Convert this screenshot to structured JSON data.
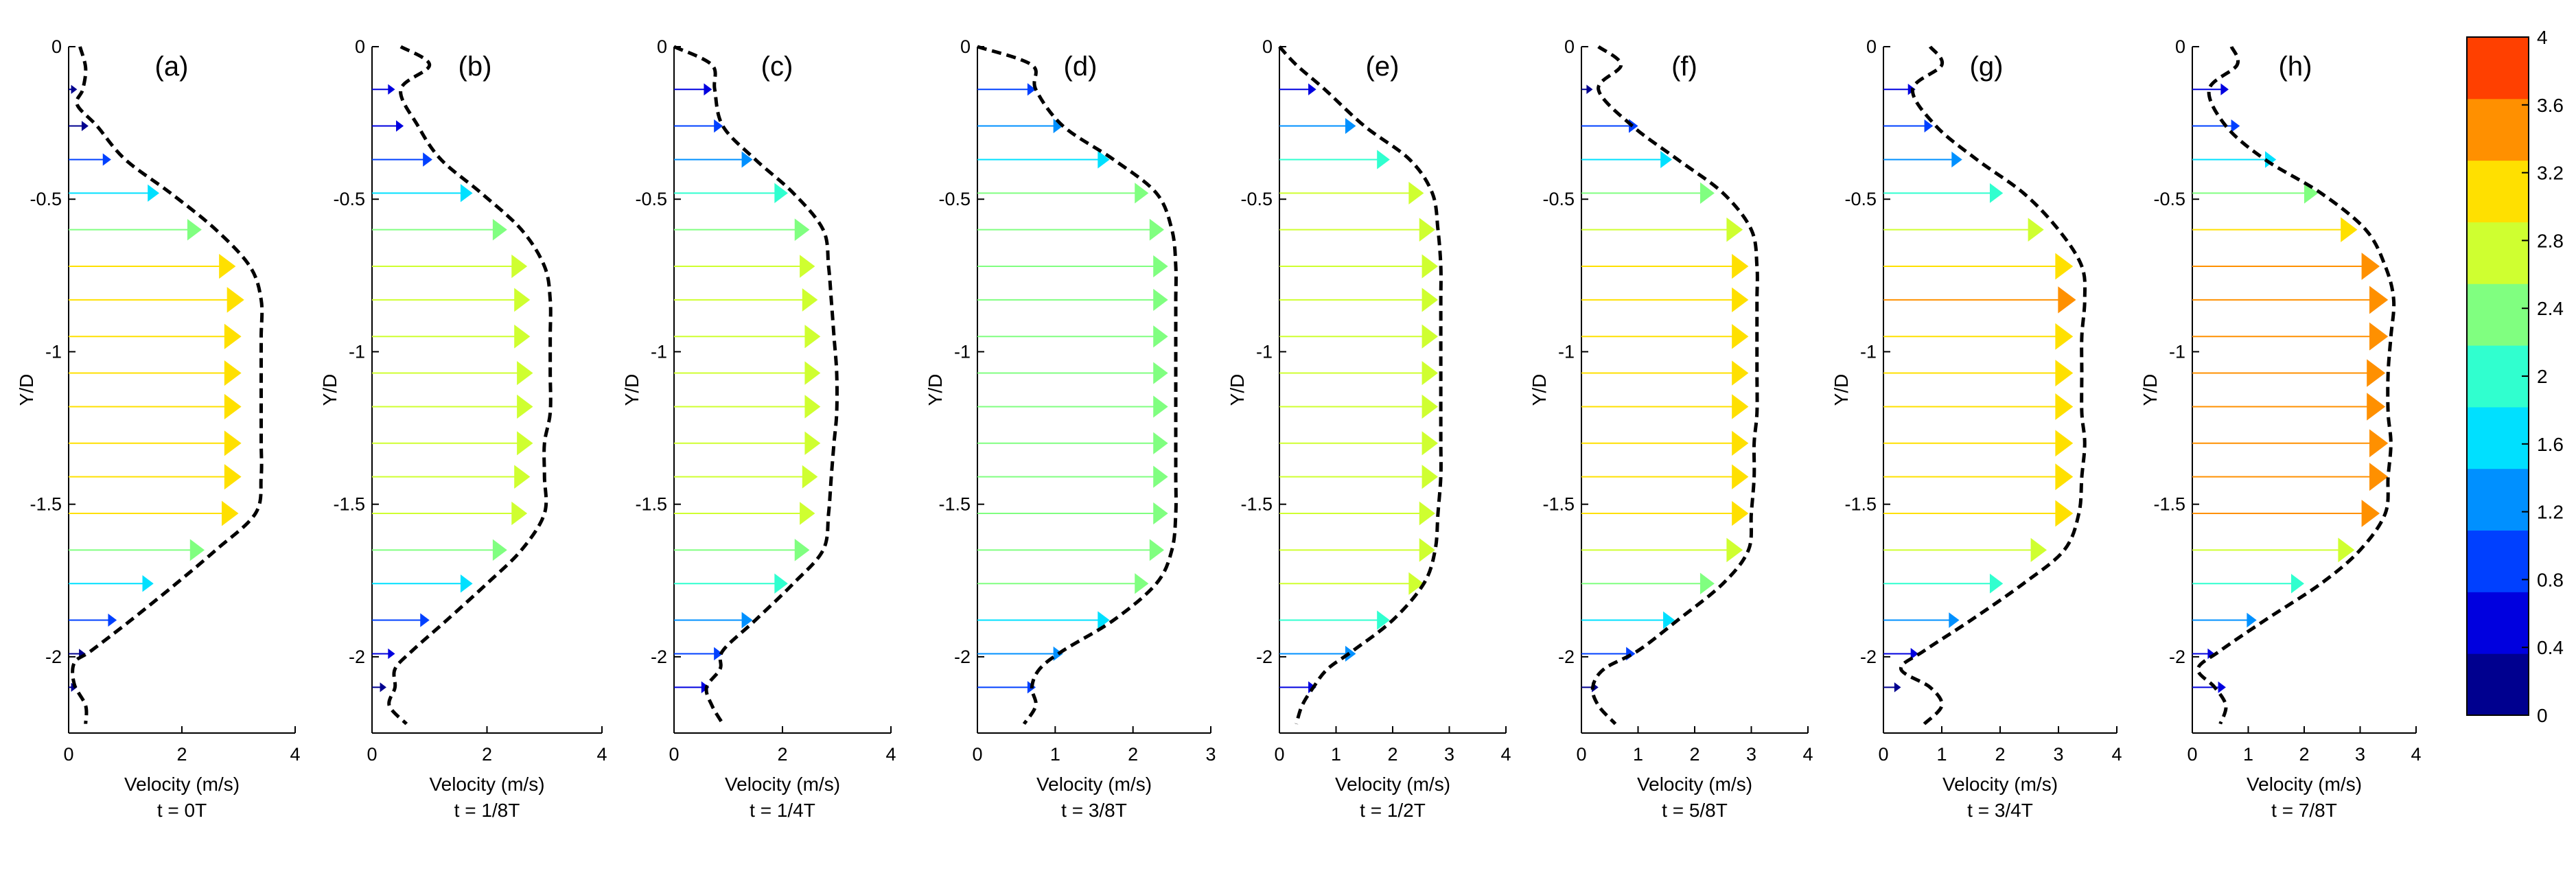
{
  "figure": {
    "ylabel": "Y/D",
    "xlabel": "Velocity (m/s)",
    "y_ticks": [
      0,
      -0.5,
      -1,
      -1.5,
      -2
    ],
    "y_tick_labels": [
      "0",
      "-0.5",
      "-1",
      "-1.5",
      "-2"
    ],
    "ylim": [
      -2.25,
      0
    ]
  },
  "colorbar": {
    "range": [
      0,
      4
    ],
    "ticks": [
      "0",
      "0.4",
      "0.8",
      "1.2",
      "1.6",
      "2",
      "2.4",
      "2.8",
      "3.2",
      "3.6",
      "4"
    ],
    "colors": [
      "#00008F",
      "#0000DF",
      "#0040FF",
      "#0090FF",
      "#00E0FF",
      "#30FFCF",
      "#80FF80",
      "#CFFF30",
      "#FFE000",
      "#FF9000",
      "#FF4000"
    ]
  },
  "chart_data": [
    {
      "panel": "(a)",
      "type": "line",
      "time_label": "t = 0T",
      "xlim": [
        0,
        4
      ],
      "x_ticks": [
        "0",
        "2",
        "4"
      ],
      "profile_y": [
        0,
        -0.07,
        -0.14,
        -0.19,
        -0.26,
        -0.37,
        -0.48,
        -0.6,
        -0.72,
        -0.83,
        -0.95,
        -1.07,
        -1.2,
        -1.3,
        -1.41,
        -1.53,
        -1.65,
        -1.76,
        -1.88,
        -1.98,
        -2.02,
        -2.09,
        -2.16,
        -2.22
      ],
      "profile_x": [
        0.2,
        0.3,
        0.25,
        0.15,
        0.5,
        1.0,
        1.8,
        2.6,
        3.2,
        3.4,
        3.4,
        3.4,
        3.4,
        3.4,
        3.4,
        3.3,
        2.6,
        1.9,
        1.1,
        0.4,
        0.1,
        0.1,
        0.3,
        0.3
      ],
      "arrow_y": [
        -0.14,
        -0.26,
        -0.37,
        -0.48,
        -0.6,
        -0.72,
        -0.83,
        -0.95,
        -1.07,
        -1.18,
        -1.3,
        -1.41,
        -1.53,
        -1.65,
        -1.76,
        -1.88,
        -1.99,
        -2.1
      ],
      "arrow_v": [
        0.15,
        0.35,
        0.75,
        1.6,
        2.35,
        2.95,
        3.1,
        3.05,
        3.05,
        3.05,
        3.05,
        3.05,
        3.0,
        2.4,
        1.5,
        0.85,
        0.3,
        0.15
      ]
    },
    {
      "panel": "(b)",
      "type": "line",
      "time_label": "t = 1/8T",
      "xlim": [
        0,
        4
      ],
      "x_ticks": [
        "0",
        "2",
        "4"
      ],
      "profile_y": [
        0,
        -0.06,
        -0.14,
        -0.26,
        -0.37,
        -0.48,
        -0.6,
        -0.72,
        -0.83,
        -0.95,
        -1.07,
        -1.2,
        -1.3,
        -1.41,
        -1.53,
        -1.65,
        -1.76,
        -1.88,
        -1.98,
        -2.04,
        -2.1,
        -2.16,
        -2.22
      ],
      "profile_x": [
        0.5,
        1.0,
        0.5,
        0.8,
        1.2,
        1.9,
        2.6,
        3.0,
        3.1,
        3.1,
        3.1,
        3.1,
        3.0,
        3.0,
        3.0,
        2.6,
        2.0,
        1.3,
        0.7,
        0.4,
        0.4,
        0.3,
        0.6
      ],
      "arrow_y": [
        -0.14,
        -0.26,
        -0.37,
        -0.48,
        -0.6,
        -0.72,
        -0.83,
        -0.95,
        -1.07,
        -1.18,
        -1.3,
        -1.41,
        -1.53,
        -1.65,
        -1.76,
        -1.88,
        -1.99,
        -2.1
      ],
      "arrow_v": [
        0.4,
        0.55,
        1.05,
        1.75,
        2.35,
        2.7,
        2.75,
        2.75,
        2.8,
        2.8,
        2.8,
        2.75,
        2.7,
        2.35,
        1.75,
        1.0,
        0.4,
        0.25
      ]
    },
    {
      "panel": "(c)",
      "type": "line",
      "time_label": "t = 1/4T",
      "xlim": [
        0,
        4
      ],
      "x_ticks": [
        "0",
        "2",
        "4"
      ],
      "profile_y": [
        0,
        -0.06,
        -0.14,
        -0.26,
        -0.37,
        -0.48,
        -0.6,
        -0.72,
        -0.83,
        -0.95,
        -1.07,
        -1.2,
        -1.3,
        -1.41,
        -1.53,
        -1.65,
        -1.76,
        -1.88,
        -1.98,
        -2.04,
        -2.1,
        -2.16,
        -2.22
      ],
      "profile_x": [
        0,
        0.7,
        0.75,
        0.9,
        1.5,
        2.2,
        2.75,
        2.85,
        2.9,
        2.95,
        3.0,
        3.0,
        2.95,
        2.9,
        2.85,
        2.75,
        2.2,
        1.5,
        0.9,
        0.85,
        0.6,
        0.7,
        0.9
      ],
      "arrow_y": [
        -0.14,
        -0.26,
        -0.37,
        -0.48,
        -0.6,
        -0.72,
        -0.83,
        -0.95,
        -1.07,
        -1.18,
        -1.3,
        -1.41,
        -1.53,
        -1.65,
        -1.76,
        -1.88,
        -1.99,
        -2.1
      ],
      "arrow_v": [
        0.7,
        0.9,
        1.45,
        2.1,
        2.5,
        2.6,
        2.65,
        2.7,
        2.7,
        2.7,
        2.7,
        2.65,
        2.6,
        2.5,
        2.1,
        1.45,
        0.9,
        0.65
      ]
    },
    {
      "panel": "(d)",
      "type": "line",
      "time_label": "t = 3/8T",
      "xlim": [
        0,
        3
      ],
      "x_ticks": [
        "0",
        "1",
        "2",
        "3"
      ],
      "profile_y": [
        0,
        -0.06,
        -0.14,
        -0.26,
        -0.37,
        -0.48,
        -0.6,
        -0.72,
        -0.83,
        -0.95,
        -1.07,
        -1.2,
        -1.3,
        -1.41,
        -1.53,
        -1.65,
        -1.76,
        -1.88,
        -1.98,
        -2.04,
        -2.1,
        -2.16,
        -2.22
      ],
      "profile_x": [
        0,
        0.7,
        0.75,
        1.1,
        1.75,
        2.3,
        2.5,
        2.55,
        2.55,
        2.55,
        2.55,
        2.55,
        2.55,
        2.55,
        2.55,
        2.5,
        2.3,
        1.75,
        1.1,
        0.8,
        0.7,
        0.75,
        0.6
      ],
      "arrow_y": [
        -0.14,
        -0.26,
        -0.37,
        -0.48,
        -0.6,
        -0.72,
        -0.83,
        -0.95,
        -1.07,
        -1.18,
        -1.3,
        -1.41,
        -1.53,
        -1.65,
        -1.76,
        -1.88,
        -1.99,
        -2.1
      ],
      "arrow_v": [
        0.75,
        1.1,
        1.7,
        2.2,
        2.4,
        2.45,
        2.45,
        2.45,
        2.45,
        2.45,
        2.45,
        2.45,
        2.45,
        2.4,
        2.2,
        1.7,
        1.1,
        0.75
      ]
    },
    {
      "panel": "(e)",
      "type": "line",
      "time_label": "t = 1/2T",
      "xlim": [
        0,
        4
      ],
      "x_ticks": [
        "0",
        "1",
        "2",
        "3",
        "4"
      ],
      "profile_y": [
        0,
        -0.06,
        -0.14,
        -0.26,
        -0.37,
        -0.48,
        -0.6,
        -0.72,
        -0.83,
        -0.95,
        -1.07,
        -1.2,
        -1.3,
        -1.41,
        -1.53,
        -1.65,
        -1.76,
        -1.88,
        -1.98,
        -2.04,
        -2.1,
        -2.16,
        -2.22
      ],
      "profile_x": [
        0,
        0.3,
        0.8,
        1.5,
        2.3,
        2.7,
        2.8,
        2.85,
        2.85,
        2.85,
        2.85,
        2.85,
        2.85,
        2.85,
        2.8,
        2.75,
        2.55,
        2.0,
        1.3,
        0.85,
        0.6,
        0.4,
        0.3
      ],
      "arrow_y": [
        -0.14,
        -0.26,
        -0.37,
        -0.48,
        -0.6,
        -0.72,
        -0.83,
        -0.95,
        -1.07,
        -1.18,
        -1.3,
        -1.41,
        -1.53,
        -1.65,
        -1.76,
        -1.88,
        -1.99,
        -2.1
      ],
      "arrow_v": [
        0.65,
        1.35,
        1.95,
        2.55,
        2.75,
        2.8,
        2.8,
        2.8,
        2.8,
        2.8,
        2.8,
        2.8,
        2.75,
        2.75,
        2.55,
        1.95,
        1.35,
        0.65
      ]
    },
    {
      "panel": "(f)",
      "type": "line",
      "time_label": "t = 5/8T",
      "xlim": [
        0,
        4
      ],
      "x_ticks": [
        "0",
        "1",
        "2",
        "3",
        "4"
      ],
      "profile_y": [
        0,
        -0.06,
        -0.14,
        -0.26,
        -0.37,
        -0.48,
        -0.6,
        -0.72,
        -0.83,
        -0.95,
        -1.07,
        -1.2,
        -1.3,
        -1.41,
        -1.53,
        -1.65,
        -1.76,
        -1.88,
        -1.98,
        -2.04,
        -2.1,
        -2.16,
        -2.22
      ],
      "profile_x": [
        0.3,
        0.7,
        0.3,
        0.9,
        1.7,
        2.5,
        3.0,
        3.1,
        3.1,
        3.1,
        3.1,
        3.1,
        3.05,
        3.05,
        3.0,
        2.95,
        2.5,
        1.7,
        1.0,
        0.4,
        0.2,
        0.3,
        0.6
      ],
      "arrow_y": [
        -0.14,
        -0.26,
        -0.37,
        -0.48,
        -0.6,
        -0.72,
        -0.83,
        -0.95,
        -1.07,
        -1.18,
        -1.3,
        -1.41,
        -1.53,
        -1.65,
        -1.76,
        -1.88,
        -1.99,
        -2.1
      ],
      "arrow_v": [
        0.2,
        1.0,
        1.6,
        2.35,
        2.85,
        2.95,
        2.95,
        2.95,
        2.95,
        2.95,
        2.95,
        2.95,
        2.95,
        2.85,
        2.35,
        1.65,
        0.95,
        0.3
      ]
    },
    {
      "panel": "(g)",
      "type": "line",
      "time_label": "t = 3/4T",
      "xlim": [
        0,
        4
      ],
      "x_ticks": [
        "0",
        "1",
        "2",
        "3",
        "4"
      ],
      "profile_y": [
        0,
        -0.06,
        -0.14,
        -0.26,
        -0.37,
        -0.48,
        -0.6,
        -0.72,
        -0.83,
        -0.95,
        -1.07,
        -1.2,
        -1.3,
        -1.41,
        -1.53,
        -1.65,
        -1.76,
        -1.88,
        -1.98,
        -2.04,
        -2.1,
        -2.16,
        -2.22
      ],
      "profile_x": [
        0.8,
        1.0,
        0.5,
        0.9,
        1.6,
        2.4,
        3.0,
        3.4,
        3.45,
        3.4,
        3.4,
        3.4,
        3.45,
        3.4,
        3.35,
        3.1,
        2.4,
        1.5,
        0.7,
        0.3,
        0.8,
        1.0,
        0.7
      ],
      "arrow_y": [
        -0.14,
        -0.26,
        -0.37,
        -0.48,
        -0.6,
        -0.72,
        -0.83,
        -0.95,
        -1.07,
        -1.18,
        -1.3,
        -1.41,
        -1.53,
        -1.65,
        -1.76,
        -1.88,
        -1.99,
        -2.1
      ],
      "arrow_v": [
        0.55,
        0.85,
        1.35,
        2.05,
        2.75,
        3.25,
        3.3,
        3.25,
        3.25,
        3.25,
        3.25,
        3.25,
        3.25,
        2.8,
        2.05,
        1.3,
        0.6,
        0.3
      ]
    },
    {
      "panel": "(h)",
      "type": "line",
      "time_label": "t = 7/8T",
      "xlim": [
        0,
        4
      ],
      "x_ticks": [
        "0",
        "1",
        "2",
        "3",
        "4"
      ],
      "profile_y": [
        0,
        -0.06,
        -0.14,
        -0.26,
        -0.37,
        -0.48,
        -0.6,
        -0.72,
        -0.83,
        -0.95,
        -1.07,
        -1.2,
        -1.3,
        -1.41,
        -1.53,
        -1.65,
        -1.76,
        -1.88,
        -1.98,
        -2.04,
        -2.1,
        -2.16,
        -2.22
      ],
      "profile_x": [
        0.7,
        0.8,
        0.3,
        0.6,
        1.3,
        2.3,
        3.1,
        3.45,
        3.6,
        3.55,
        3.5,
        3.5,
        3.55,
        3.5,
        3.45,
        3.0,
        2.3,
        1.3,
        0.5,
        0.1,
        0.4,
        0.6,
        0.5
      ],
      "arrow_y": [
        -0.14,
        -0.26,
        -0.37,
        -0.48,
        -0.6,
        -0.72,
        -0.83,
        -0.95,
        -1.07,
        -1.18,
        -1.3,
        -1.41,
        -1.53,
        -1.65,
        -1.76,
        -1.88,
        -1.99,
        -2.1
      ],
      "arrow_v": [
        0.65,
        0.85,
        1.5,
        2.25,
        2.95,
        3.35,
        3.5,
        3.5,
        3.45,
        3.45,
        3.5,
        3.5,
        3.35,
        2.9,
        2.0,
        1.15,
        0.4,
        0.6
      ]
    }
  ]
}
